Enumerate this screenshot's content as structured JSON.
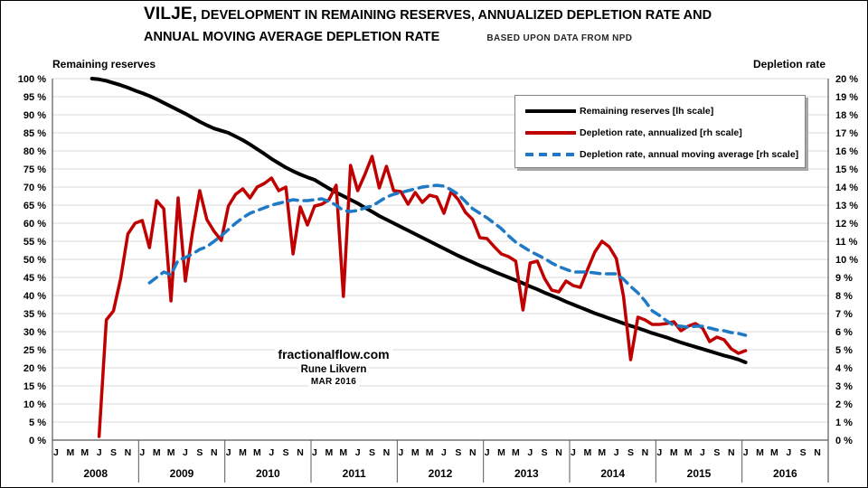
{
  "title": {
    "field": "VILJE,",
    "line1_rest": " DEVELOPMENT IN REMAINING RESERVES, ANNUALIZED DEPLETION RATE AND",
    "line2": "ANNUAL MOVING AVERAGE DEPLETION RATE",
    "source_note": "BASED UPON DATA FROM NPD"
  },
  "watermark": {
    "site": "fractionalflow.com",
    "author": "Rune Likvern",
    "date": "MAR 2016"
  },
  "colors": {
    "background": "#FFFFFF",
    "grid": "#D9D9D9",
    "axis": "#595959",
    "text": "#000000",
    "reserves_black": "#000000",
    "depletion_red": "#C00000",
    "moving_avg_blue": "#1F7AC5"
  },
  "chart_data": {
    "type": "line",
    "title": "VILJE, DEVELOPMENT IN REMAINING RESERVES, ANNUALIZED DEPLETION RATE AND ANNUAL MOVING AVERAGE DEPLETION RATE",
    "subtitle": "BASED UPON DATA FROM NPD",
    "grid": true,
    "legend_position": "upper right",
    "left_axis": {
      "label": "Remaining reserves",
      "min": 0,
      "max": 100,
      "step": 5,
      "tick_suffix": " %"
    },
    "right_axis": {
      "label": "Depletion rate",
      "min": 0,
      "max": 20,
      "step": 1,
      "tick_suffix": " %"
    },
    "x_axis": {
      "years": [
        2008,
        2009,
        2010,
        2011,
        2012,
        2013,
        2014,
        2015,
        2016
      ],
      "month_tick_labels": [
        "J",
        "M",
        "M",
        "J",
        "S",
        "N"
      ],
      "months_per_year": 12,
      "start": "2008-01"
    },
    "series": [
      {
        "id": "remaining-reserves",
        "name": "Remaining reserves [lh scale]",
        "scale": "lh",
        "style": "solid",
        "color": "#000000",
        "stroke_width": 4,
        "start_index": 5,
        "start_month": "2008-06",
        "values": [
          100,
          99.8,
          99.4,
          98.8,
          98.2,
          97.5,
          96.7,
          96,
          95.2,
          94.3,
          93.3,
          92.3,
          91.3,
          90.3,
          89.2,
          88.1,
          87.1,
          86.2,
          85.6,
          85,
          84,
          83,
          81.8,
          80.5,
          79.2,
          77.8,
          76.6,
          75.4,
          74.4,
          73.5,
          72.7,
          72,
          70.8,
          69.6,
          68.5,
          67.5,
          66.5,
          65.5,
          64.3,
          63.2,
          62,
          61,
          60,
          59,
          58,
          57,
          56,
          55,
          54,
          53,
          52,
          51,
          50.1,
          49.2,
          48.3,
          47.5,
          46.6,
          45.8,
          45,
          44.2,
          43.4,
          42.5,
          41.7,
          40.8,
          40,
          39.2,
          38.3,
          37.5,
          36.7,
          35.9,
          35.1,
          34.4,
          33.7,
          33,
          32.3,
          31.6,
          31,
          30.3,
          29.6,
          29,
          28.4,
          27.7,
          27,
          26.4,
          25.8,
          25.2,
          24.6,
          24,
          23.4,
          22.9,
          22.3,
          21.5
        ]
      },
      {
        "id": "depletion-annualized",
        "name": "Depletion rate, annualized [rh scale]",
        "scale": "rh",
        "style": "solid",
        "color": "#C00000",
        "stroke_width": 3.5,
        "start_index": 6,
        "start_month": "2008-07",
        "values": [
          0.2,
          6.65,
          7.15,
          8.95,
          11.4,
          12.0,
          12.15,
          10.65,
          13.25,
          12.8,
          7.7,
          13.4,
          8.8,
          11.5,
          13.8,
          12.2,
          11.55,
          11.05,
          12.95,
          13.6,
          13.9,
          13.4,
          14.0,
          14.2,
          14.5,
          13.8,
          14.0,
          10.3,
          12.9,
          11.9,
          12.95,
          13.05,
          13.3,
          14.1,
          7.95,
          15.2,
          13.8,
          14.7,
          15.7,
          13.95,
          15.15,
          13.8,
          13.75,
          13.05,
          13.7,
          13.15,
          13.55,
          13.45,
          12.55,
          13.75,
          13.3,
          12.6,
          12.2,
          11.2,
          11.15,
          10.7,
          10.3,
          10.15,
          9.9,
          7.2,
          9.8,
          9.9,
          8.95,
          8.3,
          8.2,
          8.8,
          8.55,
          8.45,
          9.45,
          10.4,
          11.0,
          10.7,
          10.05,
          7.95,
          4.45,
          6.8,
          6.65,
          6.4,
          6.4,
          6.45,
          6.55,
          6.05,
          6.3,
          6.45,
          6.2,
          5.45,
          5.7,
          5.55,
          5.05,
          4.8,
          4.95
        ]
      },
      {
        "id": "depletion-moving-average",
        "name": "Depletion rate, annual moving average [rh scale]",
        "scale": "rh",
        "style": "dashed",
        "color": "#1F7AC5",
        "stroke_width": 3.5,
        "dash": "10 7",
        "start_index": 13,
        "start_month": "2009-02",
        "values": [
          8.7,
          9.0,
          9.3,
          9.15,
          9.95,
          10.1,
          10.3,
          10.55,
          10.7,
          11.0,
          11.3,
          11.65,
          12.0,
          12.3,
          12.55,
          12.7,
          12.85,
          13.0,
          13.1,
          13.2,
          13.3,
          13.25,
          13.25,
          13.3,
          13.35,
          13.2,
          13.0,
          12.7,
          12.65,
          12.7,
          12.85,
          12.95,
          13.2,
          13.45,
          13.6,
          13.7,
          13.8,
          13.9,
          14.0,
          14.05,
          14.1,
          14.05,
          13.85,
          13.6,
          13.2,
          12.8,
          12.55,
          12.3,
          12.0,
          11.7,
          11.3,
          10.95,
          10.7,
          10.45,
          10.25,
          10.05,
          9.8,
          9.6,
          9.45,
          9.3,
          9.3,
          9.3,
          9.25,
          9.2,
          9.2,
          9.2,
          8.9,
          8.5,
          8.15,
          7.7,
          7.15,
          6.9,
          6.6,
          6.35,
          6.3,
          6.25,
          6.3,
          6.3,
          6.2,
          6.1,
          6.05,
          5.95,
          5.9,
          5.8
        ]
      }
    ]
  }
}
